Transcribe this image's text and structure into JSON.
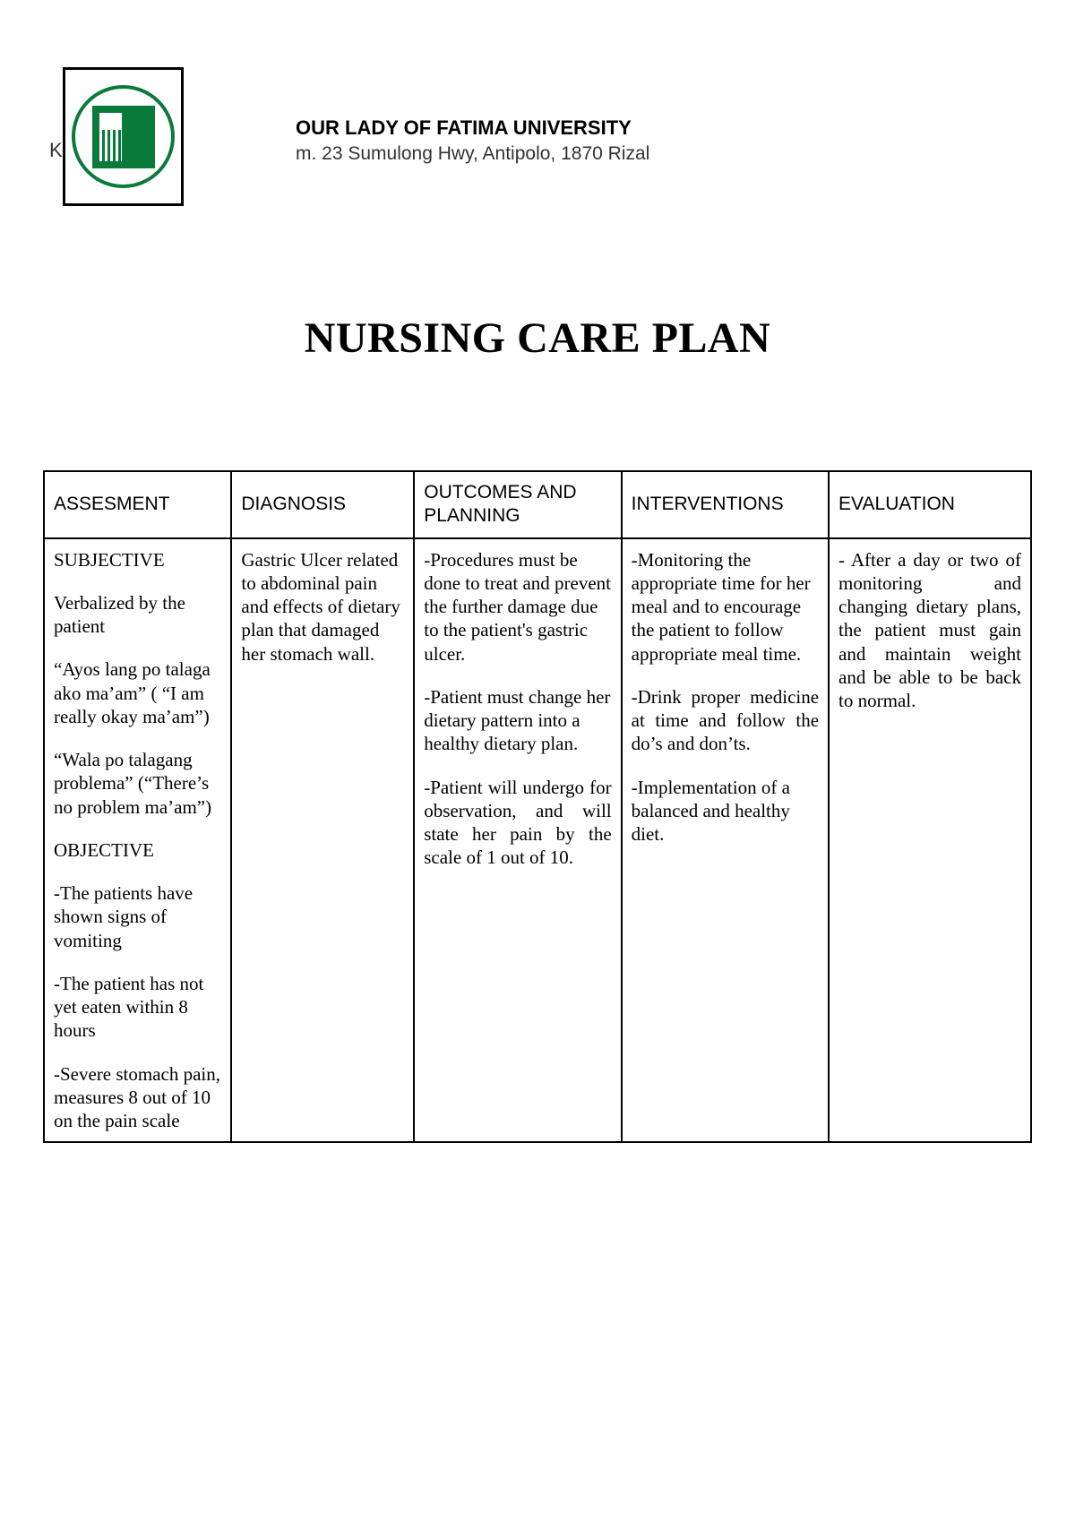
{
  "header": {
    "k_mark": "K",
    "university": "OUR LADY OF FATIMA UNIVERSITY",
    "address": "m. 23 Sumulong Hwy, Antipolo, 1870 Rizal"
  },
  "title": "NURSING CARE PLAN",
  "table": {
    "headers": {
      "assessment": "ASSESMENT",
      "diagnosis": "DIAGNOSIS",
      "outcomes": "OUTCOMES AND PLANNING",
      "interventions": "INTERVENTIONS",
      "evaluation": "EVALUATION"
    },
    "body": {
      "assessment": {
        "p1": "SUBJECTIVE",
        "p2": "Verbalized by the patient",
        "p3": "“Ayos lang po talaga ako ma’am” ( “I am really okay ma’am”)",
        "p4": "“Wala po talagang problema” (“There’s no problem ma’am”)",
        "p5": "OBJECTIVE",
        "p6": "-The patients have shown signs of vomiting",
        "p7": "-The patient has not yet eaten within 8 hours",
        "p8": "-Severe stomach pain, measures 8 out of 10 on the pain scale"
      },
      "diagnosis": {
        "p1": "Gastric Ulcer related to abdominal pain and effects of dietary plan that damaged her stomach wall."
      },
      "outcomes": {
        "p1": "-Procedures must be done to treat and prevent the further damage due to the patient's gastric ulcer.",
        "p2": "-Patient must change her dietary pattern into a healthy dietary plan.",
        "p3": "-Patient will undergo for observation, and will state her pain by the scale of 1 out of 10."
      },
      "interventions": {
        "p1": "-Monitoring the appropriate time for her meal and to encourage the patient to follow appropriate meal time.",
        "p2": "-Drink proper medicine at time and follow the do’s and don’ts.",
        "p3": "-Implementation of a balanced and healthy diet."
      },
      "evaluation": {
        "p1": "- After a day or two of monitoring and changing dietary plans, the patient must gain and maintain weight and be able to be back to normal."
      }
    }
  },
  "styling": {
    "page_bg": "#ffffff",
    "text_color": "#000000",
    "border_color": "#000000",
    "logo_green": "#0a7a3a",
    "title_fontsize": 48,
    "header_fontsize": 21,
    "body_fontsize": 21
  }
}
